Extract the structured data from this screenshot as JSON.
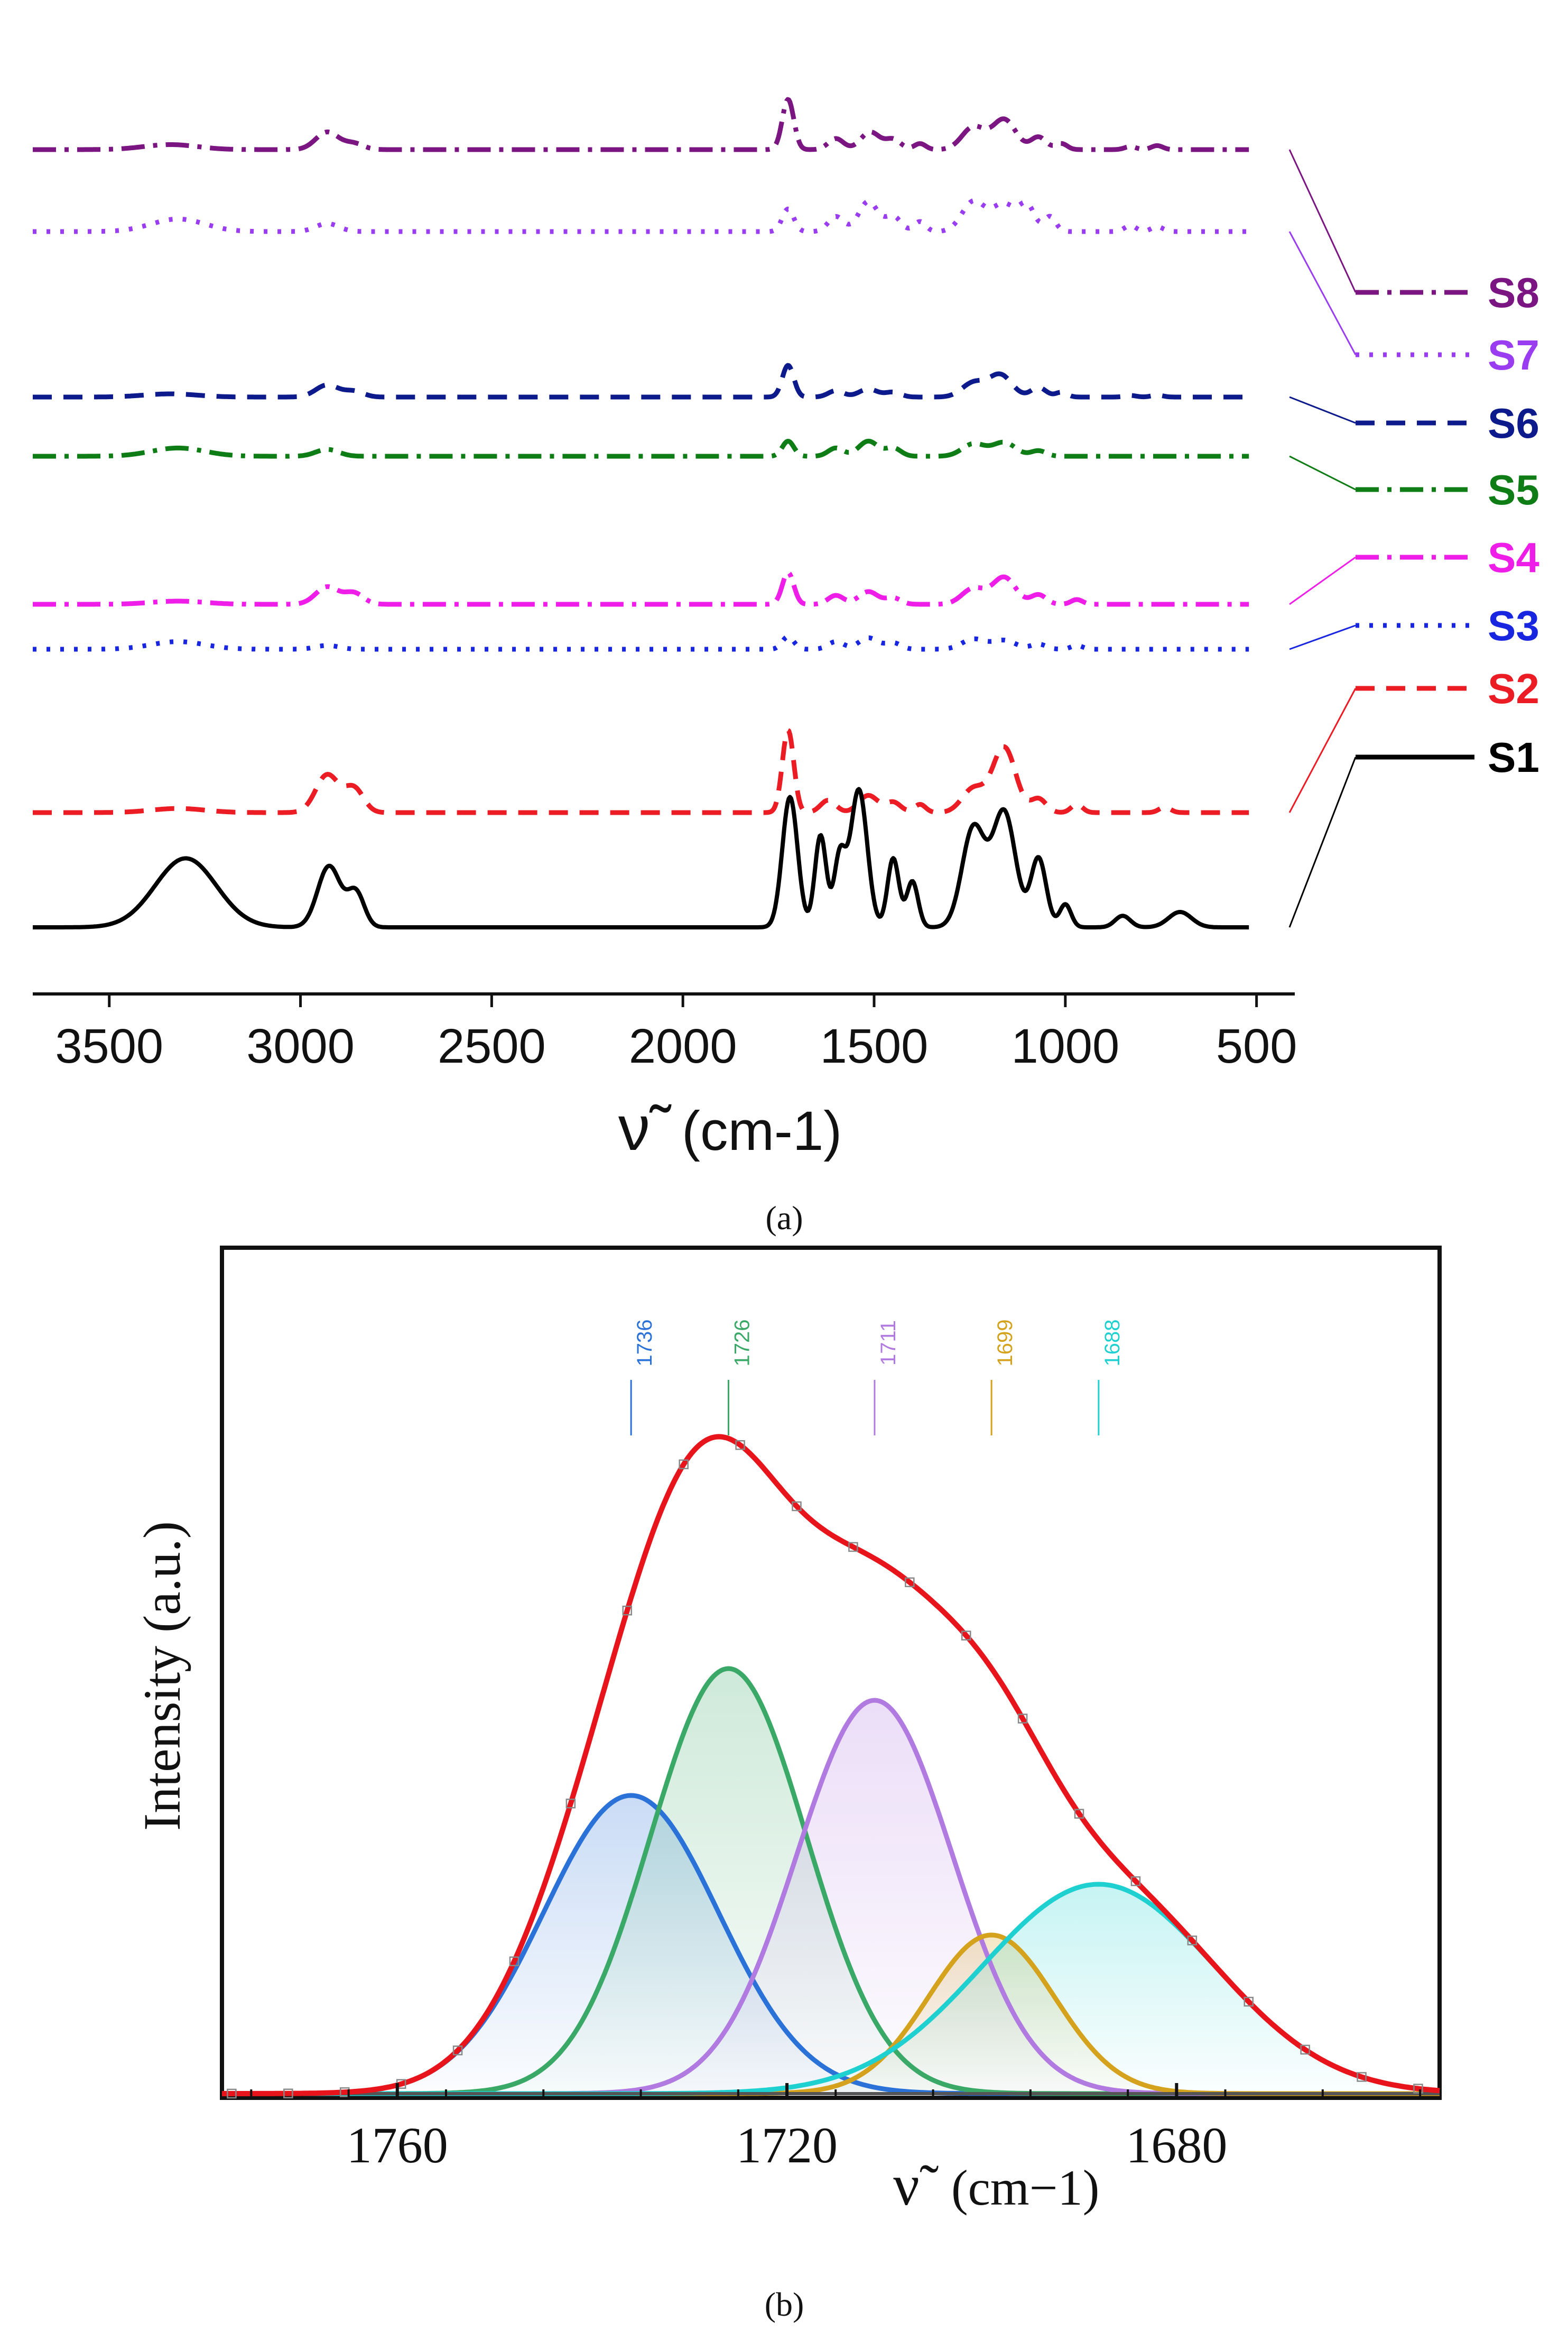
{
  "chart_data": [
    {
      "panel": "a",
      "type": "line",
      "panel_label": "(a)",
      "xlabel_symbol": "ν̃",
      "xlabel_unit": "(cm-1)",
      "xlim": [
        3700,
        400
      ],
      "xticks": [
        3500,
        3000,
        2500,
        2000,
        1500,
        1000,
        500
      ],
      "grid": false,
      "legend_position": "right",
      "series": [
        {
          "name": "S8",
          "color": "#7b1582",
          "dash": "dashdot",
          "offset": 7,
          "peaks": [
            [
              3340,
              70,
              0.1
            ],
            [
              2930,
              30,
              0.35
            ],
            [
              2860,
              25,
              0.12
            ],
            [
              1725,
              15,
              1.0
            ],
            [
              1600,
              20,
              0.22
            ],
            [
              1510,
              25,
              0.35
            ],
            [
              1450,
              20,
              0.2
            ],
            [
              1380,
              15,
              0.12
            ],
            [
              1240,
              30,
              0.45
            ],
            [
              1160,
              30,
              0.6
            ],
            [
              1070,
              20,
              0.25
            ],
            [
              1010,
              15,
              0.12
            ],
            [
              830,
              15,
              0.06
            ],
            [
              760,
              15,
              0.08
            ]
          ]
        },
        {
          "name": "S7",
          "color": "#9a3cf0",
          "dash": "dot",
          "offset": 6,
          "peaks": [
            [
              3320,
              70,
              0.25
            ],
            [
              2930,
              30,
              0.16
            ],
            [
              1725,
              15,
              0.45
            ],
            [
              1600,
              20,
              0.3
            ],
            [
              1515,
              25,
              0.6
            ],
            [
              1450,
              20,
              0.3
            ],
            [
              1380,
              15,
              0.2
            ],
            [
              1240,
              30,
              0.6
            ],
            [
              1160,
              30,
              0.55
            ],
            [
              1100,
              20,
              0.5
            ],
            [
              1040,
              15,
              0.3
            ],
            [
              830,
              15,
              0.12
            ],
            [
              760,
              15,
              0.1
            ]
          ]
        },
        {
          "name": "S6",
          "color": "#0d1a8c",
          "dash": "dash",
          "offset": 5,
          "peaks": [
            [
              3340,
              70,
              0.1
            ],
            [
              2930,
              30,
              0.38
            ],
            [
              2860,
              25,
              0.18
            ],
            [
              1725,
              15,
              1.0
            ],
            [
              1600,
              20,
              0.2
            ],
            [
              1515,
              25,
              0.25
            ],
            [
              1450,
              20,
              0.15
            ],
            [
              1240,
              30,
              0.45
            ],
            [
              1170,
              30,
              0.7
            ],
            [
              1070,
              20,
              0.3
            ],
            [
              1010,
              15,
              0.15
            ],
            [
              830,
              15,
              0.05
            ],
            [
              760,
              15,
              0.06
            ]
          ]
        },
        {
          "name": "S5",
          "color": "#0f7d16",
          "dash": "dashdot",
          "offset": 4,
          "peaks": [
            [
              3320,
              70,
              0.12
            ],
            [
              2930,
              30,
              0.1
            ],
            [
              1725,
              15,
              0.22
            ],
            [
              1600,
              20,
              0.12
            ],
            [
              1515,
              25,
              0.22
            ],
            [
              1450,
              20,
              0.12
            ],
            [
              1240,
              30,
              0.18
            ],
            [
              1160,
              30,
              0.2
            ],
            [
              1070,
              20,
              0.08
            ]
          ]
        },
        {
          "name": "S4",
          "color": "#ee1ee8",
          "dash": "dashdot",
          "offset": 3,
          "peaks": [
            [
              3320,
              70,
              0.1
            ],
            [
              2930,
              30,
              0.55
            ],
            [
              2860,
              25,
              0.35
            ],
            [
              1725,
              15,
              1.0
            ],
            [
              1600,
              20,
              0.28
            ],
            [
              1515,
              25,
              0.4
            ],
            [
              1450,
              20,
              0.2
            ],
            [
              1240,
              30,
              0.5
            ],
            [
              1160,
              30,
              0.85
            ],
            [
              1070,
              20,
              0.3
            ],
            [
              970,
              15,
              0.15
            ]
          ]
        },
        {
          "name": "S3",
          "color": "#1826e0",
          "dash": "dot",
          "offset": 2,
          "peaks": [
            [
              3320,
              70,
              0.12
            ],
            [
              2930,
              30,
              0.06
            ],
            [
              1725,
              15,
              0.2
            ],
            [
              1600,
              20,
              0.12
            ],
            [
              1515,
              25,
              0.18
            ],
            [
              1450,
              20,
              0.1
            ],
            [
              1240,
              30,
              0.16
            ],
            [
              1160,
              30,
              0.14
            ],
            [
              1070,
              20,
              0.08
            ],
            [
              970,
              15,
              0.06
            ]
          ]
        },
        {
          "name": "S2",
          "color": "#ec1c24",
          "dash": "dash",
          "offset": 1,
          "peaks": [
            [
              3320,
              70,
              0.06
            ],
            [
              2930,
              30,
              0.55
            ],
            [
              2860,
              25,
              0.35
            ],
            [
              1725,
              15,
              1.2
            ],
            [
              1620,
              20,
              0.18
            ],
            [
              1515,
              25,
              0.25
            ],
            [
              1450,
              20,
              0.15
            ],
            [
              1380,
              15,
              0.12
            ],
            [
              1240,
              30,
              0.35
            ],
            [
              1160,
              30,
              0.95
            ],
            [
              1070,
              20,
              0.2
            ],
            [
              970,
              15,
              0.12
            ],
            [
              740,
              15,
              0.08
            ]
          ]
        },
        {
          "name": "S1",
          "color": "#000000",
          "dash": "solid",
          "offset": 0,
          "peaks": [
            [
              3300,
              80,
              0.9
            ],
            [
              2925,
              30,
              0.8
            ],
            [
              2855,
              22,
              0.45
            ],
            [
              1720,
              20,
              1.7
            ],
            [
              1640,
              15,
              1.2
            ],
            [
              1590,
              15,
              0.9
            ],
            [
              1540,
              22,
              1.8
            ],
            [
              1450,
              15,
              0.9
            ],
            [
              1400,
              15,
              0.6
            ],
            [
              1240,
              30,
              1.3
            ],
            [
              1160,
              30,
              1.5
            ],
            [
              1070,
              20,
              0.9
            ],
            [
              1000,
              15,
              0.3
            ],
            [
              850,
              20,
              0.15
            ],
            [
              700,
              30,
              0.2
            ]
          ]
        }
      ]
    },
    {
      "panel": "b",
      "type": "line",
      "panel_label": "(b)",
      "ylabel": "Intensity (a.u.)",
      "xlabel_symbol": "ν̃",
      "xlabel_unit": "(cm−1)",
      "xlim": [
        1778,
        1653
      ],
      "ylim": [
        0,
        1.05
      ],
      "xticks": [
        1760,
        1720,
        1680
      ],
      "grid": false,
      "components": [
        {
          "center": 1736,
          "label": "1736",
          "amplitude": 0.47,
          "sigma": 9.0,
          "color": "#2a72d8"
        },
        {
          "center": 1726,
          "label": "1726",
          "amplitude": 0.67,
          "sigma": 8.0,
          "color": "#3aa866"
        },
        {
          "center": 1711,
          "label": "1711",
          "amplitude": 0.62,
          "sigma": 8.0,
          "color": "#b07ae0"
        },
        {
          "center": 1699,
          "label": "1699",
          "amplitude": 0.25,
          "sigma": 6.5,
          "color": "#d4a21c"
        },
        {
          "center": 1688,
          "label": "1688",
          "amplitude": 0.33,
          "sigma": 12.0,
          "color": "#1fd0d0"
        }
      ],
      "envelope_color": "#e8141c",
      "baseline_color": "#555555"
    }
  ]
}
